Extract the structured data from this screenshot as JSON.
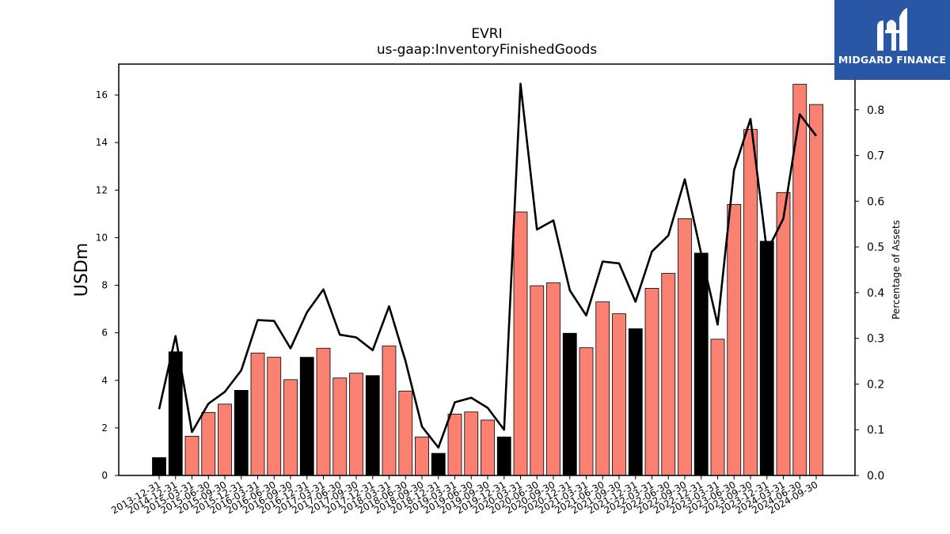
{
  "logo": {
    "brand_name": "MIDGARD FINANCE"
  },
  "chart_data": {
    "type": "bar",
    "title": "EVRI",
    "subtitle": "us-gaap:InventoryFinishedGoods",
    "ylabel": "USDm",
    "ylabel_right": "Percentage of Assets",
    "ylim": [
      0,
      17.3
    ],
    "ylim_right": [
      0,
      0.9
    ],
    "yticks": [
      0,
      2,
      4,
      6,
      8,
      10,
      12,
      14,
      16
    ],
    "yticks_right": [
      "0.0",
      "0.1",
      "0.2",
      "0.3",
      "0.4",
      "0.5",
      "0.6",
      "0.7",
      "0.8"
    ],
    "grid": false,
    "colors": {
      "annual": "#000000",
      "quarterly": "#fa8072",
      "bar_edge": "#000000",
      "line": "#000000"
    },
    "categories": [
      "2013-12-31",
      "2014-12-31",
      "2015-03-31",
      "2015-06-30",
      "2015-09-30",
      "2015-12-31",
      "2016-03-31",
      "2016-06-30",
      "2016-09-30",
      "2016-12-31",
      "2017-03-31",
      "2017-06-30",
      "2017-09-30",
      "2017-12-31",
      "2018-03-31",
      "2018-06-30",
      "2018-09-30",
      "2018-12-31",
      "2019-03-31",
      "2019-06-30",
      "2019-09-30",
      "2019-12-31",
      "2020-03-31",
      "2020-06-30",
      "2020-09-30",
      "2020-12-31",
      "2021-03-31",
      "2021-06-30",
      "2021-09-30",
      "2021-12-31",
      "2022-03-31",
      "2022-06-30",
      "2022-09-30",
      "2022-12-31",
      "2023-03-31",
      "2023-06-30",
      "2023-09-30",
      "2023-12-31",
      "2024-03-31",
      "2024-06-30",
      "2024-09-30"
    ],
    "series": [
      {
        "values": [
          0.75,
          5.2,
          1.65,
          2.65,
          3.0,
          3.58,
          5.15,
          4.97,
          4.03,
          4.97,
          5.35,
          4.1,
          4.3,
          4.2,
          5.45,
          3.55,
          1.62,
          0.93,
          2.58,
          2.67,
          2.33,
          1.62,
          11.08,
          7.98,
          8.1,
          5.98,
          5.37,
          7.3,
          6.8,
          6.17,
          7.87,
          8.5,
          10.8,
          9.35,
          5.73,
          11.4,
          14.55,
          9.85,
          11.9,
          16.45,
          15.6
        ],
        "period": [
          "annual",
          "annual",
          "quarterly",
          "quarterly",
          "quarterly",
          "annual",
          "quarterly",
          "quarterly",
          "quarterly",
          "annual",
          "quarterly",
          "quarterly",
          "quarterly",
          "annual",
          "quarterly",
          "quarterly",
          "quarterly",
          "annual",
          "quarterly",
          "quarterly",
          "quarterly",
          "annual",
          "quarterly",
          "quarterly",
          "quarterly",
          "annual",
          "quarterly",
          "quarterly",
          "quarterly",
          "annual",
          "quarterly",
          "quarterly",
          "quarterly",
          "annual",
          "quarterly",
          "quarterly",
          "quarterly",
          "annual",
          "quarterly",
          "quarterly",
          "quarterly"
        ]
      },
      {
        "axis": "right",
        "type": "line",
        "values": [
          0.145,
          0.305,
          0.095,
          0.157,
          0.183,
          0.23,
          0.34,
          0.338,
          0.278,
          0.357,
          0.407,
          0.308,
          0.302,
          0.274,
          0.37,
          0.25,
          0.107,
          0.061,
          0.16,
          0.17,
          0.148,
          0.1,
          0.857,
          0.538,
          0.558,
          0.405,
          0.35,
          0.468,
          0.464,
          0.38,
          0.49,
          0.525,
          0.648,
          0.485,
          0.33,
          0.668,
          0.78,
          0.49,
          0.562,
          0.79,
          0.743
        ]
      }
    ]
  }
}
